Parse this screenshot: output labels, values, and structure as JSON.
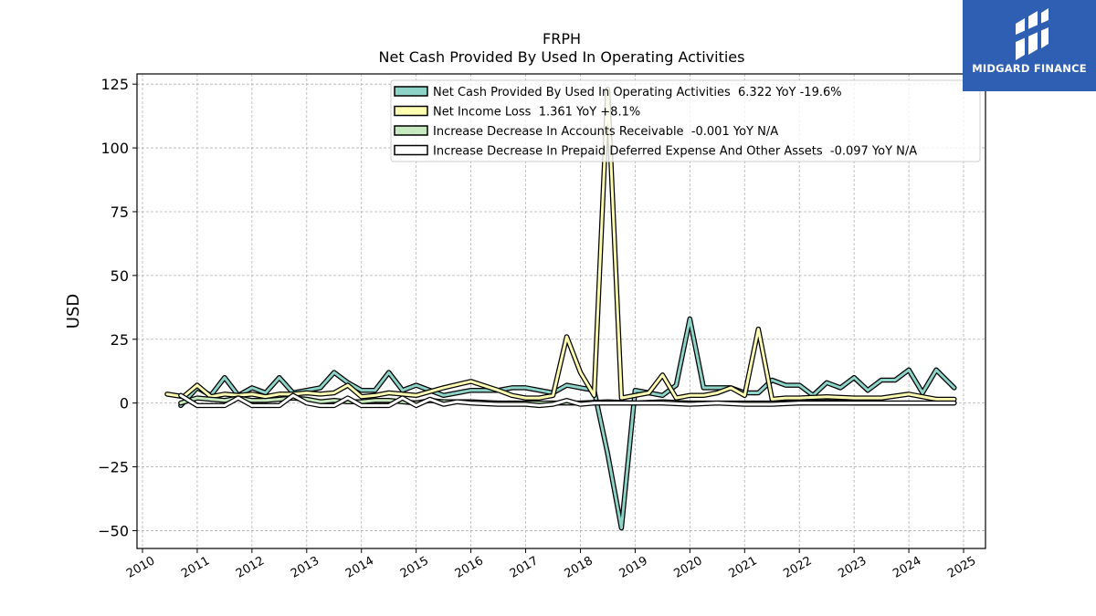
{
  "logo": {
    "text": "MIDGARD FINANCE"
  },
  "chart_data": {
    "type": "line",
    "title": "FRPH",
    "subtitle": "Net Cash Provided By Used In Operating Activities",
    "xlabel": "",
    "ylabel": "USD",
    "xlim": [
      2009.9,
      2025.4
    ],
    "ylim": [
      -57,
      129
    ],
    "xticks": [
      2010,
      2011,
      2012,
      2013,
      2014,
      2015,
      2016,
      2017,
      2018,
      2019,
      2020,
      2021,
      2022,
      2023,
      2024,
      2025
    ],
    "xtick_labels": [
      "2010",
      "2011",
      "2012",
      "2013",
      "2014",
      "2015",
      "2016",
      "2017",
      "2018",
      "2019",
      "2020",
      "2021",
      "2022",
      "2023",
      "2024",
      "2025"
    ],
    "yticks": [
      -50,
      -25,
      0,
      25,
      50,
      75,
      100,
      125
    ],
    "ytick_labels": [
      "−50",
      "−25",
      "0",
      "25",
      "50",
      "75",
      "100",
      "125"
    ],
    "grid": true,
    "legend_position": "top-right",
    "series": [
      {
        "name": "Net Cash Provided By Used In Operating Activities  6.322 YoY -19.6%",
        "color": "#8dd3c7",
        "x": [
          2010.7,
          2011.0,
          2011.25,
          2011.5,
          2011.75,
          2012.0,
          2012.25,
          2012.5,
          2012.75,
          2013.0,
          2013.25,
          2013.5,
          2013.75,
          2014.0,
          2014.25,
          2014.5,
          2014.75,
          2015.0,
          2015.5,
          2016.0,
          2016.5,
          2016.75,
          2017.0,
          2017.25,
          2017.5,
          2017.75,
          2018.0,
          2018.25,
          2018.5,
          2018.75,
          2019.0,
          2019.25,
          2019.5,
          2019.75,
          2020.0,
          2020.25,
          2020.5,
          2020.75,
          2021.0,
          2021.25,
          2021.5,
          2021.75,
          2022.0,
          2022.25,
          2022.5,
          2022.75,
          2023.0,
          2023.25,
          2023.5,
          2023.75,
          2024.0,
          2024.25,
          2024.5,
          2024.83
        ],
        "values": [
          -1,
          6,
          3,
          10,
          3,
          6,
          4,
          10,
          4,
          5,
          6,
          12,
          8,
          5,
          5,
          12,
          5,
          7,
          3,
          5,
          5,
          6,
          6,
          5,
          4,
          7,
          6,
          5,
          -20,
          -49,
          5,
          4,
          3,
          7,
          33,
          6,
          6,
          6,
          4,
          4,
          9,
          7,
          7,
          3,
          8,
          6,
          10,
          5,
          9,
          9,
          13,
          4,
          13,
          6
        ]
      },
      {
        "name": "Net Income Loss  1.361 YoY +8.1%",
        "color": "#ffffb3",
        "x": [
          2010.45,
          2010.75,
          2011.0,
          2011.25,
          2011.5,
          2011.75,
          2012.0,
          2012.25,
          2012.5,
          2012.75,
          2013.0,
          2013.25,
          2013.5,
          2013.75,
          2014.0,
          2014.25,
          2014.5,
          2014.75,
          2015.0,
          2015.5,
          2016.0,
          2016.5,
          2016.75,
          2017.0,
          2017.25,
          2017.5,
          2017.75,
          2018.0,
          2018.25,
          2018.5,
          2018.75,
          2019.0,
          2019.25,
          2019.5,
          2019.75,
          2020.0,
          2020.25,
          2020.5,
          2020.75,
          2021.0,
          2021.25,
          2021.5,
          2021.75,
          2022.0,
          2022.5,
          2023.0,
          2023.5,
          2024.0,
          2024.5,
          2024.83
        ],
        "values": [
          3.5,
          2.5,
          7,
          2.5,
          3.5,
          3,
          3.5,
          2.5,
          3.5,
          3.5,
          4,
          3.5,
          4,
          7,
          2.5,
          3,
          4,
          3.5,
          3,
          6,
          8.5,
          5,
          3,
          2,
          2,
          3,
          26,
          12,
          3,
          123,
          2,
          3,
          4,
          11,
          2,
          3,
          3,
          4,
          6,
          3,
          29,
          1.5,
          2,
          2,
          2.5,
          2,
          2,
          3.5,
          1.5,
          1.5
        ]
      },
      {
        "name": "Increase Decrease In Accounts Receivable  -0.001 YoY N/A",
        "color": "#c7e9c0",
        "x": [
          2010.7,
          2011.0,
          2011.25,
          2011.5,
          2011.75,
          2012.0,
          2012.25,
          2012.5,
          2012.75,
          2013.0,
          2013.25,
          2013.5,
          2013.75,
          2014.0,
          2014.25,
          2014.5,
          2014.75,
          2015.0,
          2015.25,
          2015.5,
          2016.0,
          2016.5,
          2017.0,
          2017.5,
          2018.0,
          2018.5,
          2019.0,
          2019.5,
          2020.0,
          2020.5,
          2021.0,
          2021.5,
          2022.0,
          2022.5,
          2023.0,
          2023.5,
          2024.0,
          2024.5,
          2024.83
        ],
        "values": [
          0,
          2,
          1.5,
          1,
          2,
          1,
          1,
          1.5,
          2,
          1.5,
          0.5,
          1,
          0.5,
          0.5,
          1,
          1,
          0.5,
          0,
          1,
          0.5,
          0.5,
          0,
          0,
          0,
          0,
          0.5,
          0,
          0.5,
          0,
          0,
          0,
          0,
          0,
          0.5,
          0,
          0,
          0,
          0,
          0
        ]
      },
      {
        "name": "Increase Decrease In Prepaid Deferred Expense And Other Assets  -0.097 YoY N/A",
        "color": "#ffffff",
        "x": [
          2010.7,
          2011.0,
          2011.25,
          2011.5,
          2011.75,
          2012.0,
          2012.25,
          2012.5,
          2012.75,
          2013.0,
          2013.25,
          2013.5,
          2013.75,
          2014.0,
          2014.25,
          2014.5,
          2014.75,
          2015.0,
          2015.25,
          2015.5,
          2015.75,
          2016.0,
          2016.5,
          2017.0,
          2017.25,
          2017.5,
          2017.75,
          2018.0,
          2018.25,
          2018.5,
          2018.75,
          2019.0,
          2019.5,
          2020.0,
          2020.5,
          2021.0,
          2021.5,
          2022.0,
          2022.5,
          2023.0,
          2023.5,
          2024.0,
          2024.5,
          2024.83
        ],
        "values": [
          3,
          -1,
          -1,
          -1,
          2,
          -1,
          -1,
          -1,
          3,
          0,
          -1,
          -1,
          2,
          -1,
          -1,
          -1,
          2,
          -1,
          1.5,
          -0.5,
          0.5,
          0,
          -0.5,
          -0.5,
          -1,
          -0.5,
          1,
          -0.5,
          0,
          0,
          0,
          0,
          0,
          -0.5,
          0,
          -0.5,
          -0.5,
          0,
          0,
          0,
          0,
          0,
          0,
          0
        ]
      }
    ]
  }
}
